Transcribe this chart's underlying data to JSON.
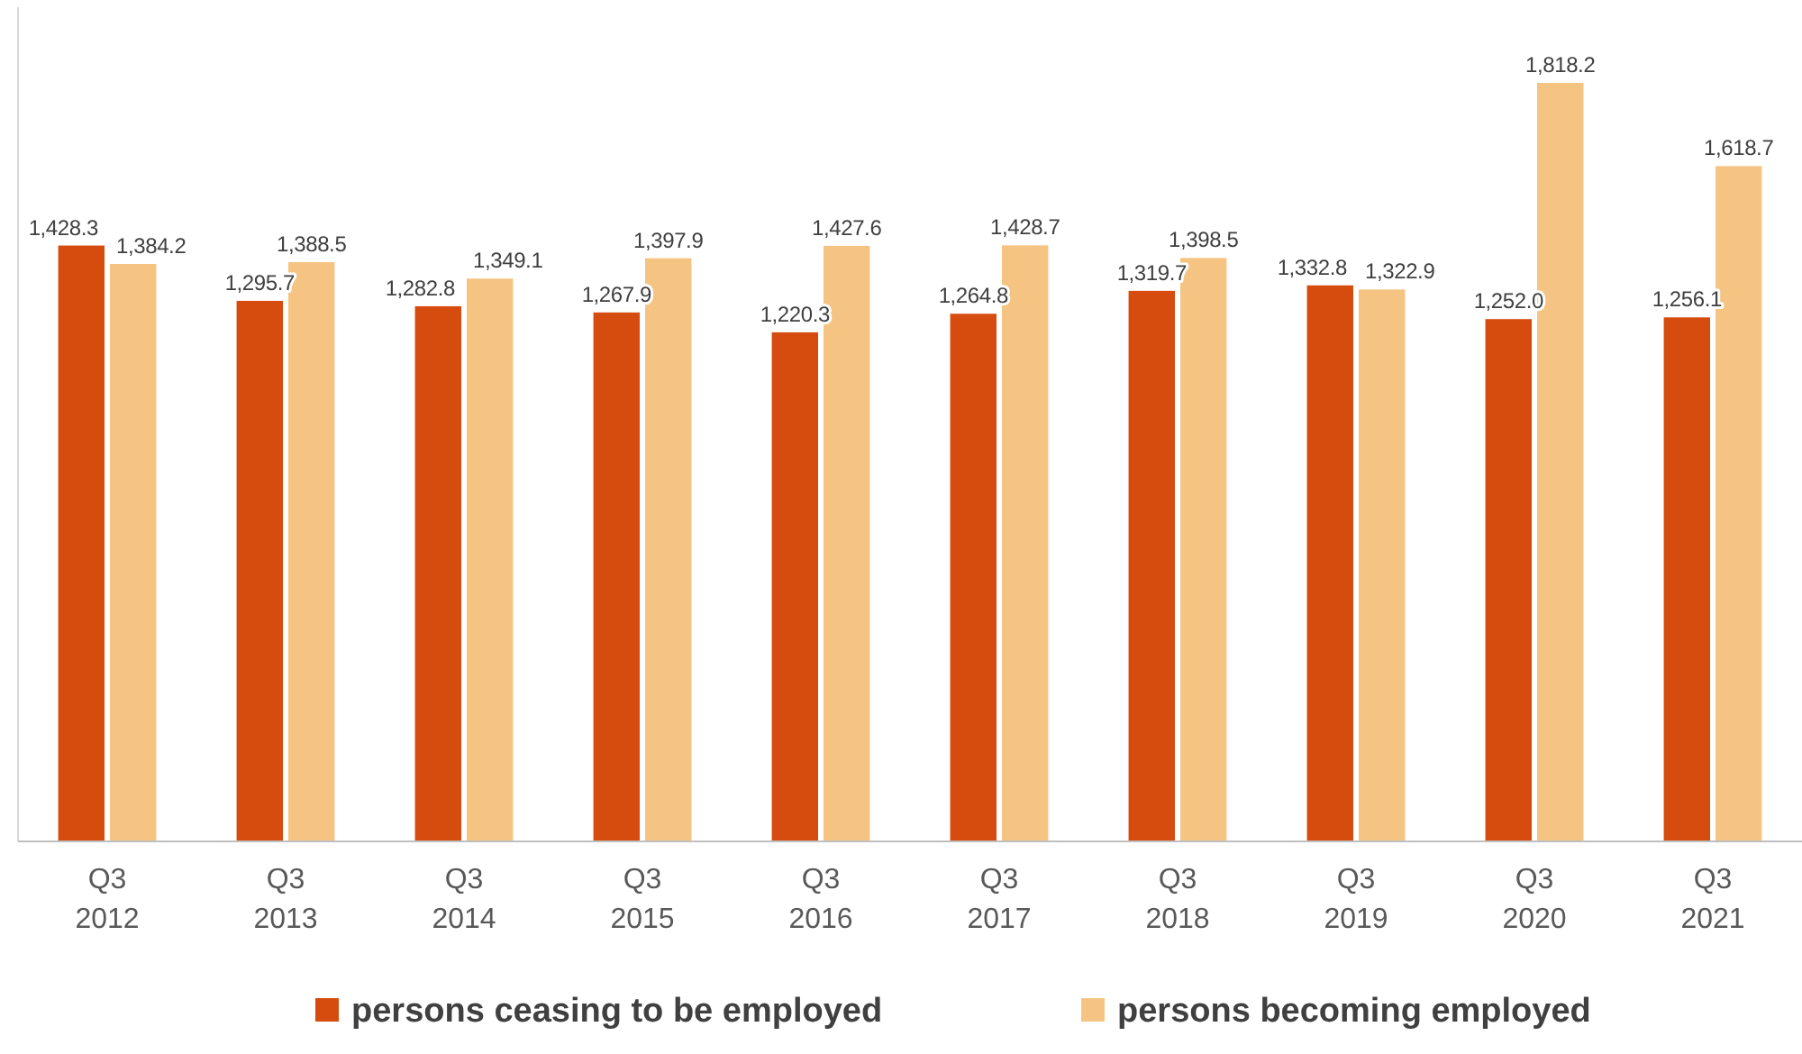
{
  "chart_data": {
    "type": "bar",
    "categories": [
      "Q3\n2012",
      "Q3\n2013",
      "Q3\n2014",
      "Q3\n2015",
      "Q3\n2016",
      "Q3\n2017",
      "Q3\n2018",
      "Q3\n2019",
      "Q3\n2020",
      "Q3\n2021"
    ],
    "series": [
      {
        "name": "persons ceasing to be employed",
        "color": "#d64b0e",
        "values": [
          1428.3,
          1295.7,
          1282.8,
          1267.9,
          1220.3,
          1264.8,
          1319.7,
          1332.8,
          1252.0,
          1256.1
        ],
        "value_labels": [
          "1,428.3",
          "1,295.7",
          "1,282.8",
          "1,267.9",
          "1,220.3",
          "1,264.8",
          "1,319.7",
          "1,332.8",
          "1,252.0",
          "1,256.1"
        ]
      },
      {
        "name": "persons becoming employed",
        "color": "#f5c483",
        "values": [
          1384.2,
          1388.5,
          1349.1,
          1397.9,
          1427.6,
          1428.7,
          1398.5,
          1322.9,
          1818.2,
          1618.7
        ],
        "value_labels": [
          "1,384.2",
          "1,388.5",
          "1,349.1",
          "1,397.9",
          "1,427.6",
          "1,428.7",
          "1,398.5",
          "1,322.9",
          "1,818.2",
          "1,618.7"
        ]
      }
    ],
    "tick_labels": "x",
    "legend": "bottom"
  }
}
